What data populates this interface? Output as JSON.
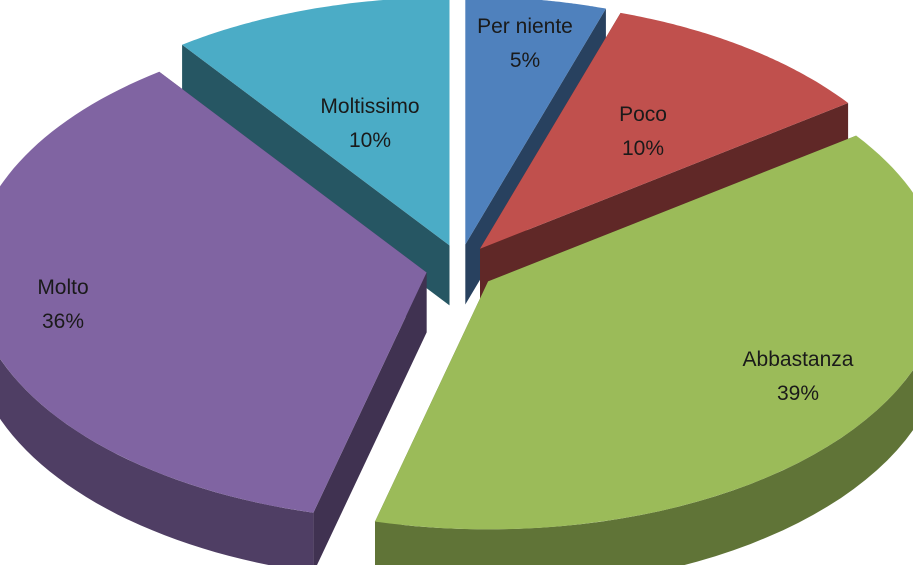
{
  "chart_data": {
    "type": "pie",
    "style": "3d-exploded",
    "categories": [
      "Per niente",
      "Poco",
      "Abbastanza",
      "Molto",
      "Moltissimo"
    ],
    "values": [
      5,
      10,
      39,
      36,
      10
    ],
    "percent_labels": [
      "5%",
      "10%",
      "39%",
      "36%",
      "10%"
    ],
    "colors": [
      "#4F81BD",
      "#C0504D",
      "#9BBB59",
      "#8064A2",
      "#4BACC6"
    ],
    "legend": "none"
  }
}
